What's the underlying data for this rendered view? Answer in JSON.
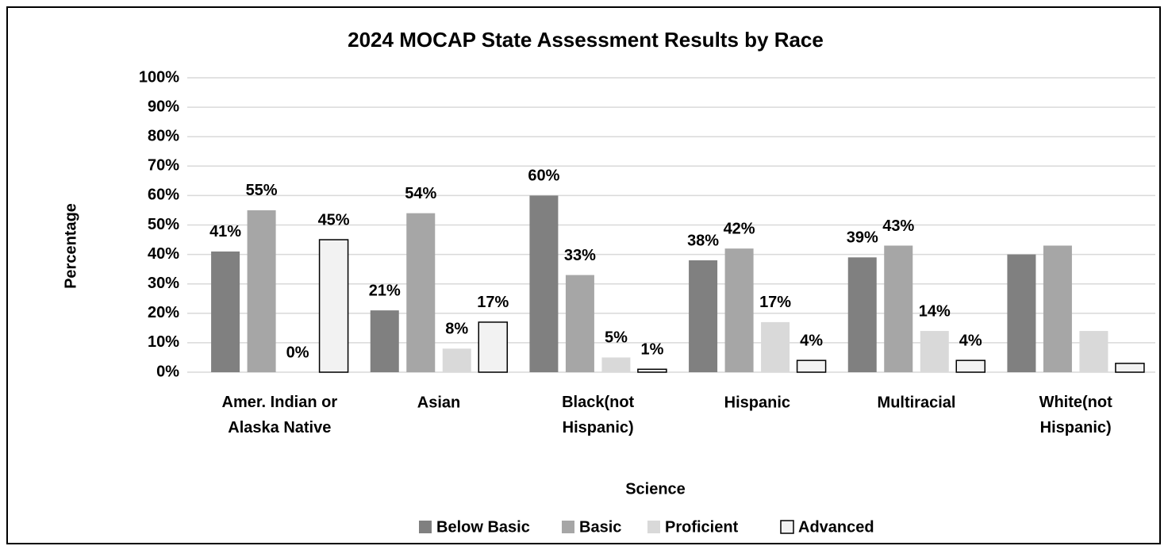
{
  "chart_data": {
    "type": "bar",
    "title": "2024 MOCAP State Assessment Results by Race",
    "x_label": "Science",
    "y_label": "Percentage",
    "categories": [
      "Amer. Indian or\nAlaska Native",
      "Asian",
      "Black(not\nHispanic)",
      "Hispanic",
      "Multiracial",
      "White(not\nHispanic)"
    ],
    "series": [
      {
        "name": "Below Basic",
        "color": "#808080",
        "values": [
          41,
          21,
          60,
          38,
          39,
          40
        ],
        "value_labels": [
          "41%",
          "21%",
          "60%",
          "38%",
          "39%",
          null
        ]
      },
      {
        "name": "Basic",
        "color": "#a6a6a6",
        "values": [
          55,
          54,
          33,
          42,
          43,
          43
        ],
        "value_labels": [
          "55%",
          "54%",
          "33%",
          "42%",
          "43%",
          null
        ]
      },
      {
        "name": "Proficient",
        "color": "#d9d9d9",
        "values": [
          0,
          8,
          5,
          17,
          14,
          14
        ],
        "value_labels": [
          "0%",
          "8%",
          "5%",
          "17%",
          "14%",
          null
        ]
      },
      {
        "name": "Advanced",
        "color": "#f2f2f2",
        "values": [
          45,
          17,
          1,
          4,
          4,
          3
        ],
        "value_labels": [
          "45%",
          "17%",
          "1%",
          "4%",
          "4%",
          null
        ]
      }
    ],
    "ylim": [
      0,
      100
    ],
    "yticks": [
      {
        "value": 0,
        "label": "0%"
      },
      {
        "value": 10,
        "label": "10%"
      },
      {
        "value": 20,
        "label": "20%"
      },
      {
        "value": 30,
        "label": "30%"
      },
      {
        "value": 40,
        "label": "40%"
      },
      {
        "value": 50,
        "label": "50%"
      },
      {
        "value": 60,
        "label": "60%"
      },
      {
        "value": 70,
        "label": "70%"
      },
      {
        "value": 80,
        "label": "80%"
      },
      {
        "value": 90,
        "label": "90%"
      },
      {
        "value": 100,
        "label": "100%"
      }
    ],
    "grid": true,
    "legend": "bottom"
  }
}
